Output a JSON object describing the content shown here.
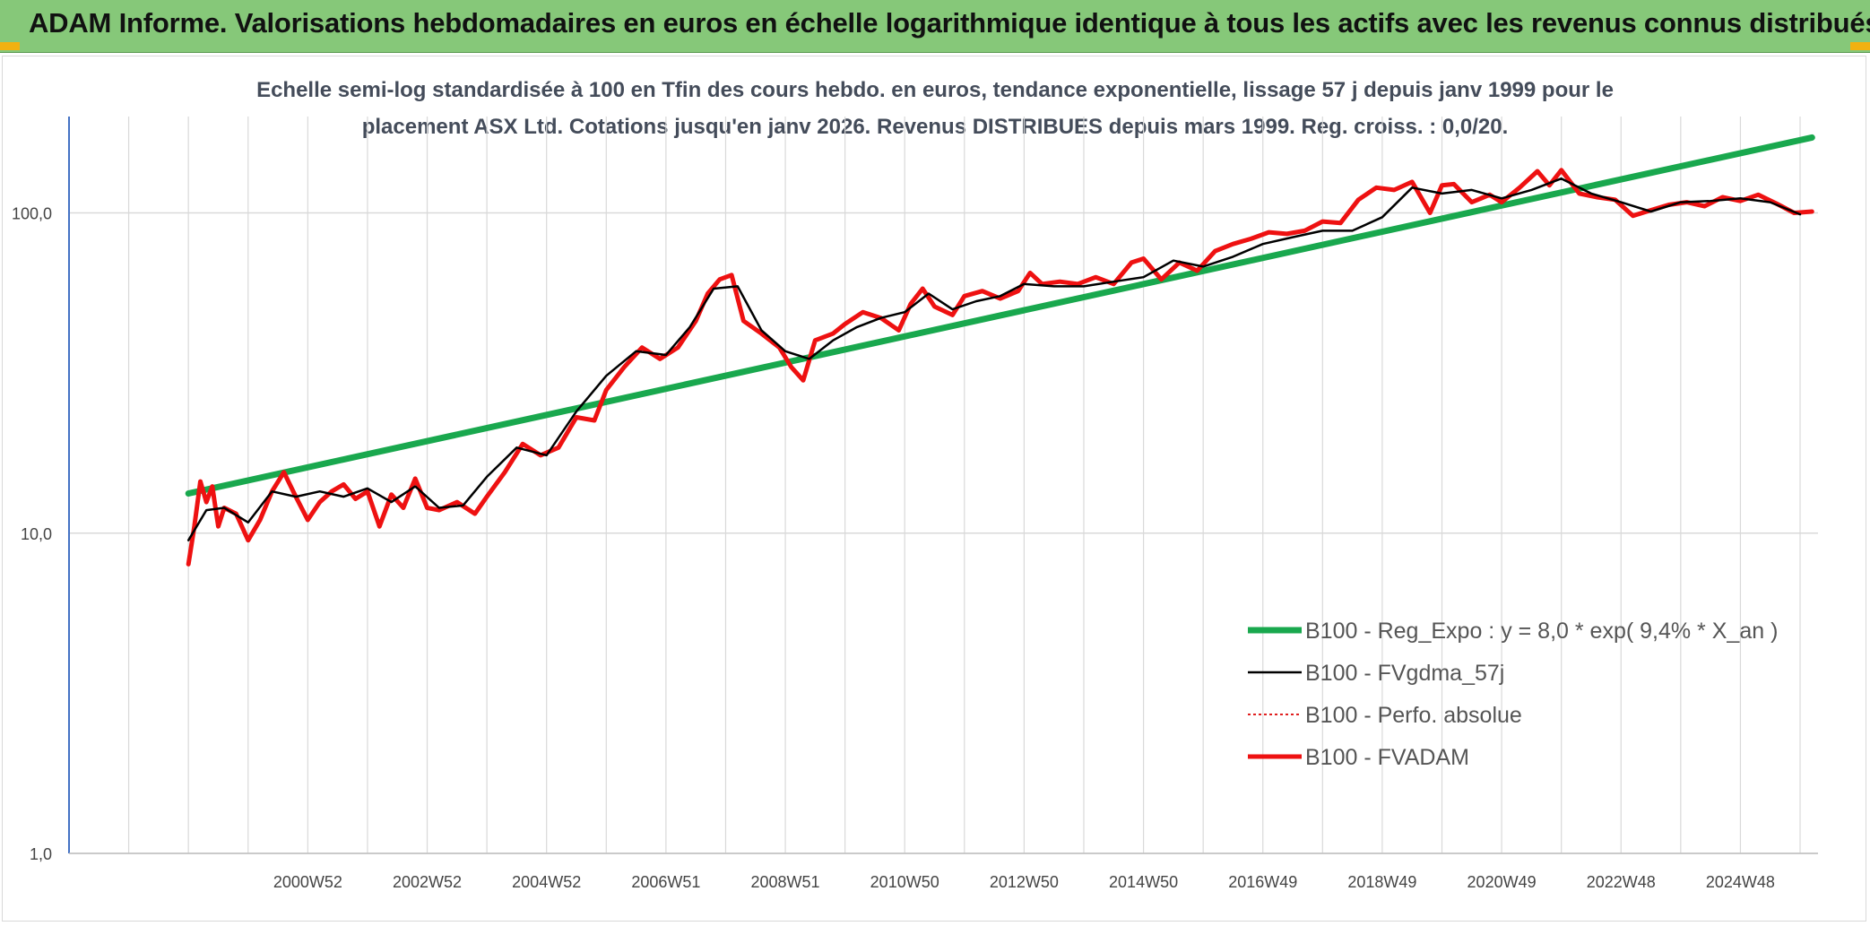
{
  "header": {
    "title": "ADAM Informe. Valorisations hebdomadaires en euros en échelle logarithmique identique à tous les actifs avec les revenus connus distribués"
  },
  "colors": {
    "banner": "#86c879",
    "regression": "#19a84e",
    "smoothed": "#000000",
    "absolute": "#e02020",
    "fvadam": "#ee1111",
    "grid": "#d9d9d9",
    "axis": "#4472c4"
  },
  "chart_data": {
    "type": "line",
    "title_line1": "Echelle semi-log standardisée à 100 en Tfin des cours hebdo. en euros, tendance exponentielle, lissage 57 j depuis janv 1999 pour le",
    "title_line2": "placement ASX Ltd. Cotations jusqu'en janv 2026. Revenus DISTRIBUES depuis mars 1999. Reg. croiss. : 0,0/20.",
    "y_scale": "log",
    "ylim": [
      1,
      200
    ],
    "y_ticks": [
      "1,0",
      "10,0",
      "100,0"
    ],
    "x_range": [
      1997.0,
      2026.3
    ],
    "x_ticks": [
      {
        "label": "2000W52",
        "year": 2001.0
      },
      {
        "label": "2002W52",
        "year": 2003.0
      },
      {
        "label": "2004W52",
        "year": 2005.0
      },
      {
        "label": "2006W51",
        "year": 2007.0
      },
      {
        "label": "2008W51",
        "year": 2009.0
      },
      {
        "label": "2010W50",
        "year": 2011.0
      },
      {
        "label": "2012W50",
        "year": 2013.0
      },
      {
        "label": "2014W50",
        "year": 2015.0
      },
      {
        "label": "2016W49",
        "year": 2017.0
      },
      {
        "label": "2018W49",
        "year": 2019.0
      },
      {
        "label": "2020W49",
        "year": 2021.0
      },
      {
        "label": "2022W48",
        "year": 2023.0
      },
      {
        "label": "2024W48",
        "year": 2025.0
      }
    ],
    "grid": true,
    "legend_position": "bottom-right",
    "series": [
      {
        "name": "B100 - Reg_Expo : y = 8,0 * exp( 9,4% *  X_an )",
        "style": "solid-thick",
        "x": [
          1999.0,
          2026.2
        ],
        "y": [
          13.3,
          172.0
        ]
      },
      {
        "name": "B100 - FVgdma_57j",
        "style": "solid-thin",
        "x": [
          1999.0,
          1999.3,
          1999.6,
          2000.0,
          2000.4,
          2000.8,
          2001.2,
          2001.6,
          2002.0,
          2002.4,
          2002.8,
          2003.2,
          2003.6,
          2004.0,
          2004.5,
          2005.0,
          2005.5,
          2006.0,
          2006.5,
          2007.0,
          2007.4,
          2007.8,
          2008.2,
          2008.6,
          2009.0,
          2009.4,
          2009.8,
          2010.2,
          2010.6,
          2011.0,
          2011.4,
          2011.8,
          2012.2,
          2012.6,
          2013.0,
          2013.5,
          2014.0,
          2014.5,
          2015.0,
          2015.5,
          2016.0,
          2016.5,
          2017.0,
          2017.5,
          2018.0,
          2018.5,
          2019.0,
          2019.5,
          2020.0,
          2020.5,
          2021.0,
          2021.5,
          2022.0,
          2022.5,
          2023.0,
          2023.5,
          2024.0,
          2024.5,
          2025.0,
          2025.5,
          2026.0
        ],
        "y": [
          9.5,
          11.8,
          12.0,
          10.8,
          13.5,
          13.0,
          13.5,
          13.0,
          13.8,
          12.5,
          14.0,
          12.0,
          12.2,
          15.0,
          18.5,
          17.5,
          24.0,
          31.0,
          37.0,
          36.0,
          44.0,
          58.0,
          59.0,
          43.0,
          37.0,
          35.0,
          40.0,
          44.0,
          47.0,
          49.0,
          56.0,
          50.0,
          53.0,
          55.0,
          60.0,
          59.0,
          59.0,
          61.0,
          63.0,
          71.0,
          68.0,
          73.0,
          80.0,
          84.0,
          88.0,
          88.0,
          97.0,
          120.0,
          115.0,
          118.0,
          111.0,
          118.0,
          128.0,
          115.0,
          108.0,
          101.0,
          108.0,
          109.0,
          111.0,
          108.0,
          99.0
        ]
      },
      {
        "name": "B100 - Perfo. absolue",
        "style": "dotted",
        "x": [],
        "y": []
      },
      {
        "name": "B100 - FVADAM",
        "style": "solid-thick",
        "x": [
          1999.0,
          1999.1,
          1999.2,
          1999.3,
          1999.4,
          1999.5,
          1999.6,
          1999.8,
          2000.0,
          2000.2,
          2000.4,
          2000.6,
          2000.8,
          2001.0,
          2001.2,
          2001.4,
          2001.6,
          2001.8,
          2002.0,
          2002.2,
          2002.4,
          2002.6,
          2002.8,
          2003.0,
          2003.2,
          2003.5,
          2003.8,
          2004.0,
          2004.3,
          2004.6,
          2004.9,
          2005.2,
          2005.5,
          2005.8,
          2006.0,
          2006.3,
          2006.6,
          2006.9,
          2007.2,
          2007.5,
          2007.7,
          2007.9,
          2008.1,
          2008.3,
          2008.6,
          2008.9,
          2009.1,
          2009.3,
          2009.5,
          2009.8,
          2010.0,
          2010.3,
          2010.6,
          2010.9,
          2011.1,
          2011.3,
          2011.5,
          2011.8,
          2012.0,
          2012.3,
          2012.6,
          2012.9,
          2013.1,
          2013.3,
          2013.6,
          2013.9,
          2014.2,
          2014.5,
          2014.8,
          2015.0,
          2015.3,
          2015.6,
          2015.9,
          2016.2,
          2016.5,
          2016.8,
          2017.1,
          2017.4,
          2017.7,
          2018.0,
          2018.3,
          2018.6,
          2018.9,
          2019.2,
          2019.5,
          2019.8,
          2020.0,
          2020.2,
          2020.5,
          2020.8,
          2021.0,
          2021.3,
          2021.6,
          2021.8,
          2022.0,
          2022.3,
          2022.6,
          2022.9,
          2023.2,
          2023.5,
          2023.8,
          2024.1,
          2024.4,
          2024.7,
          2025.0,
          2025.3,
          2025.6,
          2025.9,
          2026.2
        ],
        "y": [
          8.0,
          10.5,
          14.5,
          12.5,
          14.0,
          10.5,
          12.0,
          11.5,
          9.5,
          11.0,
          13.5,
          15.5,
          13.0,
          11.0,
          12.5,
          13.5,
          14.2,
          12.8,
          13.5,
          10.5,
          13.2,
          12.0,
          14.8,
          12.0,
          11.8,
          12.5,
          11.5,
          13.0,
          15.5,
          19.0,
          17.5,
          18.5,
          23.0,
          22.5,
          28.0,
          33.0,
          38.0,
          35.0,
          38.0,
          46.0,
          56.0,
          62.0,
          64.0,
          46.0,
          42.0,
          38.0,
          33.0,
          30.0,
          40.0,
          42.0,
          45.0,
          49.0,
          47.0,
          43.0,
          52.0,
          58.0,
          51.0,
          48.0,
          55.0,
          57.0,
          54.0,
          57.0,
          65.0,
          60.0,
          61.0,
          60.0,
          63.0,
          60.0,
          70.0,
          72.0,
          62.0,
          70.0,
          66.0,
          76.0,
          80.0,
          83.0,
          87.0,
          86.0,
          88.0,
          94.0,
          93.0,
          110.0,
          120.0,
          118.0,
          125.0,
          100.0,
          122.0,
          123.0,
          108.0,
          114.0,
          108.0,
          120.0,
          135.0,
          122.0,
          136.0,
          115.0,
          112.0,
          110.0,
          98.0,
          102.0,
          106.0,
          108.0,
          105.0,
          112.0,
          109.0,
          114.0,
          107.0,
          100.0,
          101.0
        ]
      }
    ]
  }
}
